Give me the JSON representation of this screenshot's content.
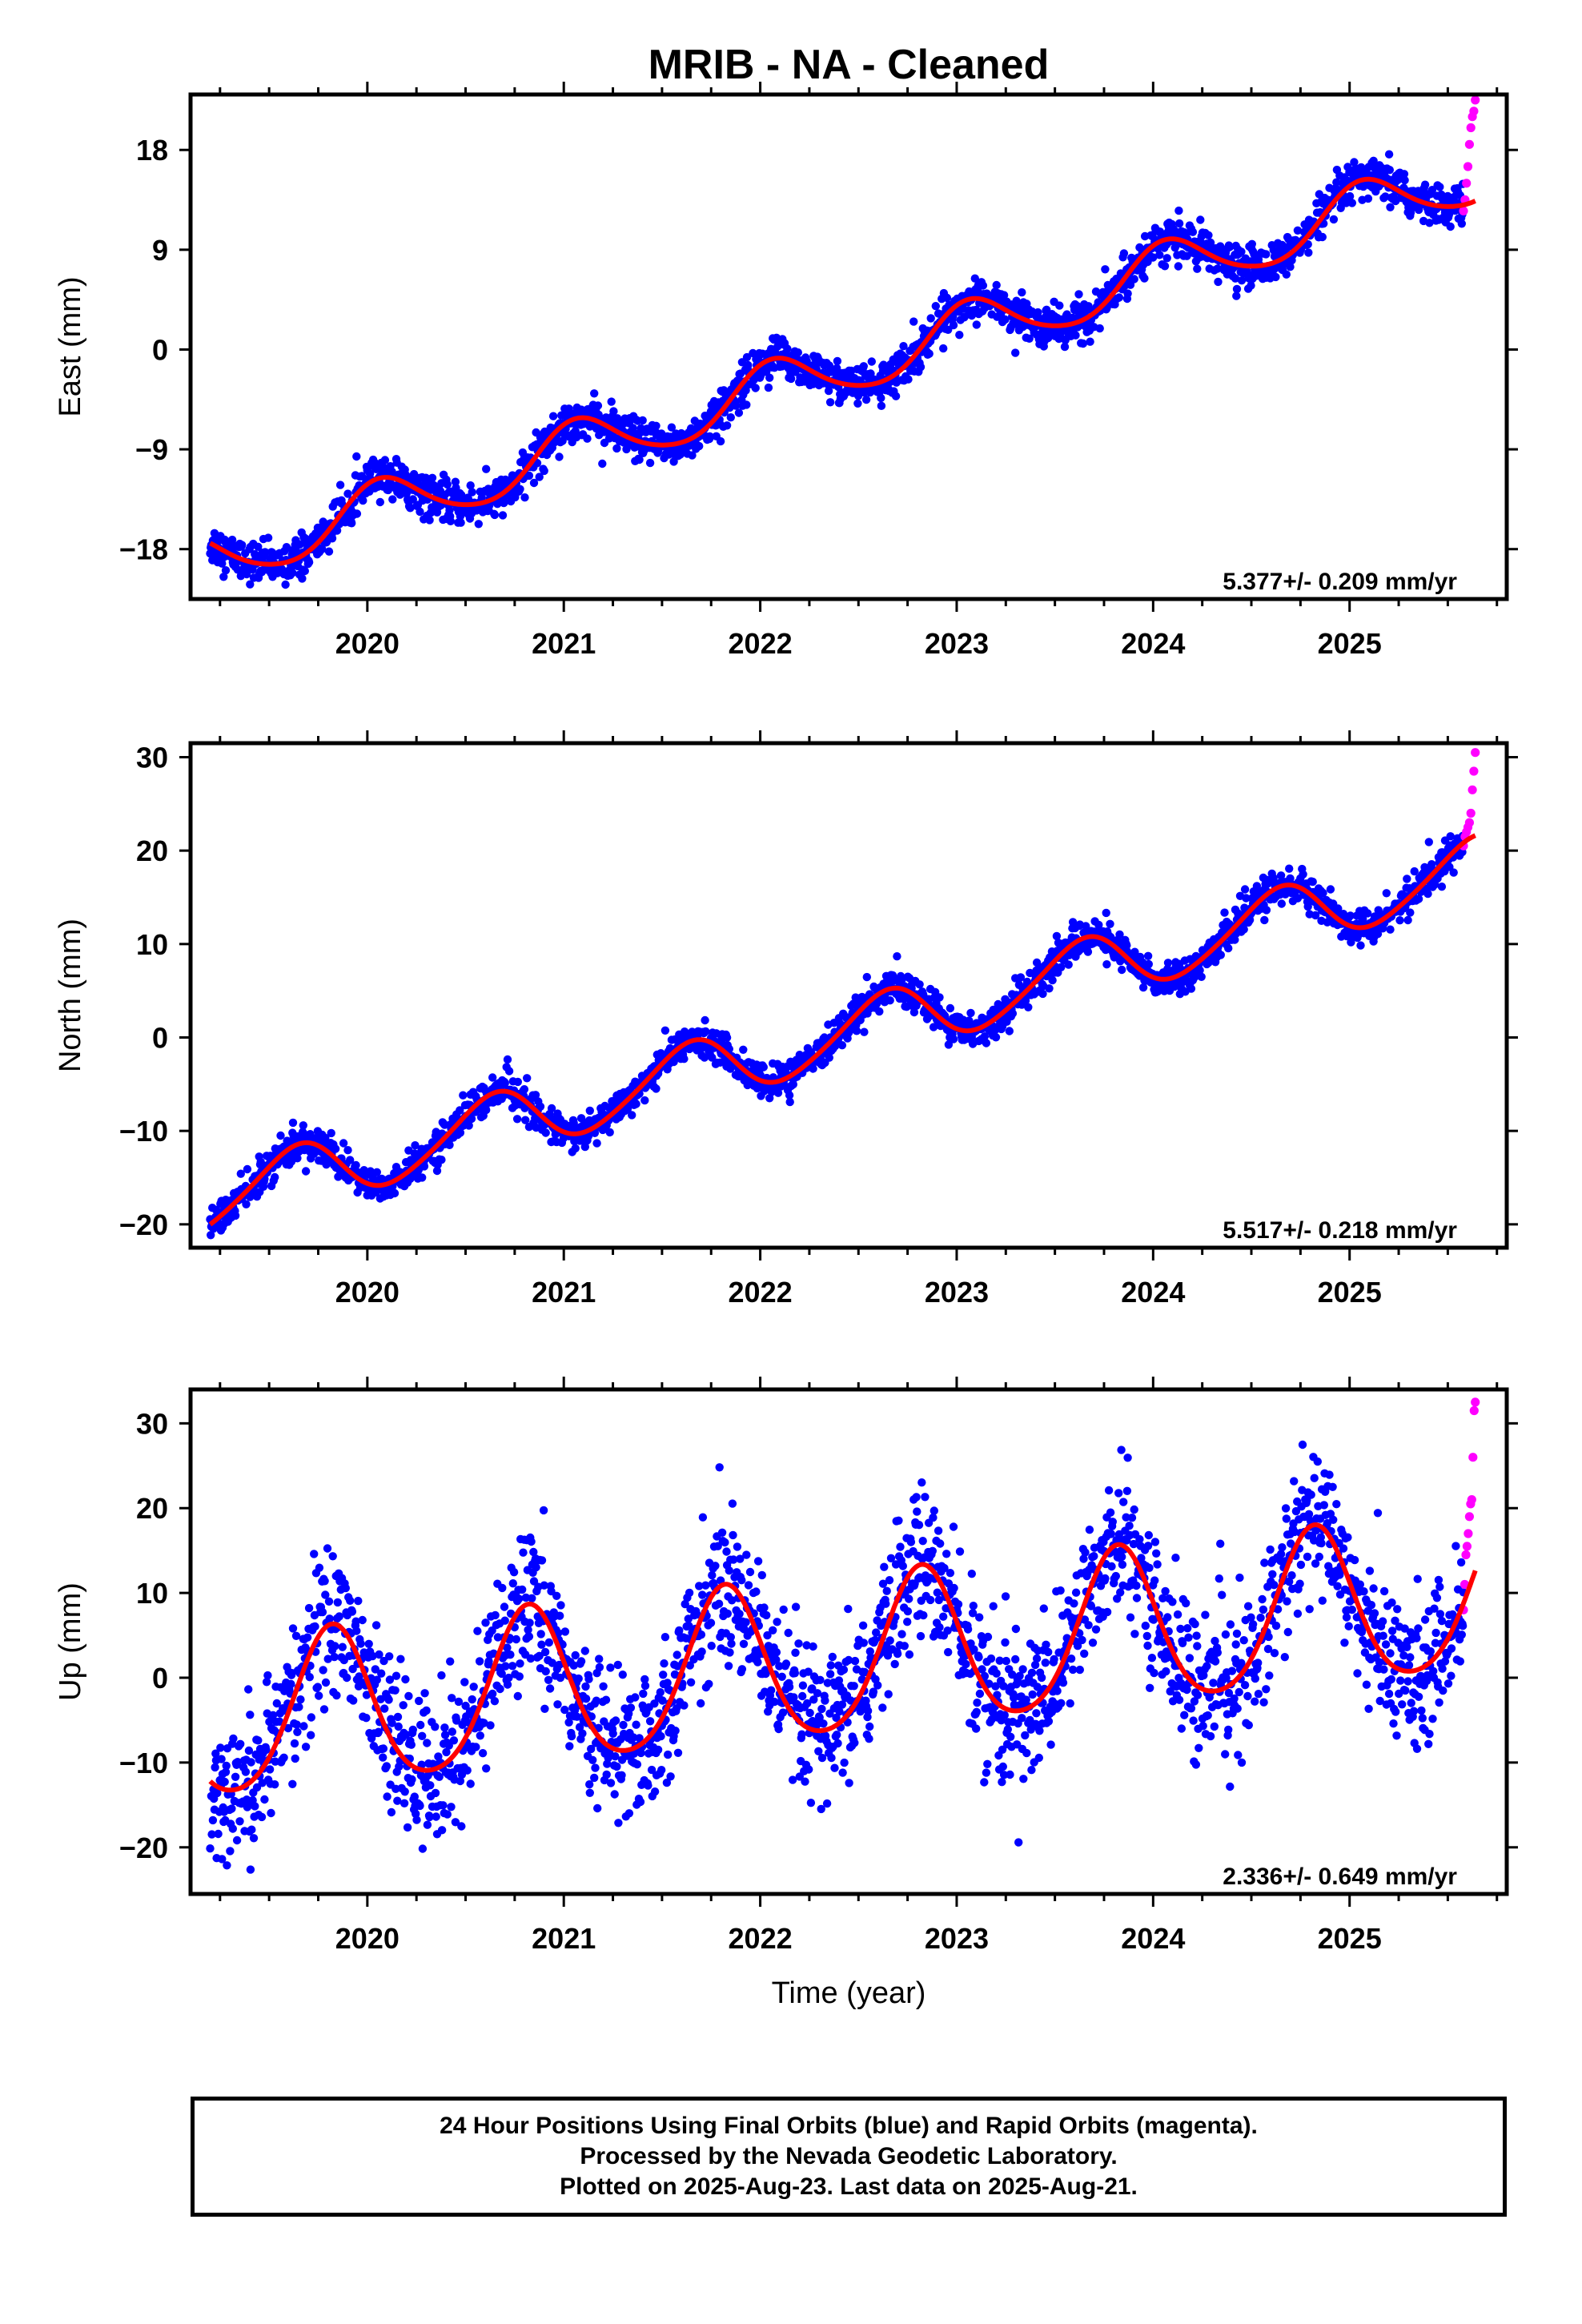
{
  "title": "MRIB  - NA - Cleaned",
  "footer": {
    "line1": "24 Hour Positions Using Final Orbits (blue) and Rapid Orbits (magenta).",
    "line2": "Processed by the Nevada Geodetic Laboratory.",
    "line3": "Plotted on 2025-Aug-23. Last data on 2025-Aug-21."
  },
  "colors": {
    "final": "#0000ff",
    "rapid": "#ff00ff",
    "model": "#ff0000",
    "axis": "#000000"
  },
  "chart_data": [
    {
      "type": "scatter",
      "component": "east",
      "ylabel": "East (mm)",
      "xlabel": "",
      "rate_label": "5.377+/- 0.209 mm/yr",
      "xlim": [
        2019.1,
        2025.8
      ],
      "ylim": [
        -22.5,
        23
      ],
      "y_ticks": [
        -18,
        -9,
        0,
        9,
        18
      ],
      "y_tick_labels": [
        "−18",
        "−9",
        "0",
        "9",
        "18"
      ],
      "x_ticks": [
        2020,
        2021,
        2022,
        2023,
        2024,
        2025
      ],
      "x_tick_labels": [
        "2020",
        "2021",
        "2022",
        "2023",
        "2024",
        "2025"
      ],
      "start": 2019.2,
      "end_final": 2025.58,
      "end_rapid": 2025.64,
      "model": {
        "offset": -19.0,
        "rate": 5.377,
        "annual_amp": 2.5,
        "annual_phase": 0.82,
        "semiannual_amp": 0.3,
        "semiannual_phase": 0.4
      },
      "scatter_sd": 0.9,
      "rapid_values": [
        12.5,
        13.5,
        15.0,
        16.5,
        18.5,
        20.0,
        21.0,
        21.5,
        22.5
      ]
    },
    {
      "type": "scatter",
      "component": "north",
      "ylabel": "North (mm)",
      "xlabel": "",
      "rate_label": "5.517+/- 0.218 mm/yr",
      "xlim": [
        2019.1,
        2025.8
      ],
      "ylim": [
        -22.5,
        31.5
      ],
      "y_ticks": [
        -20,
        -10,
        0,
        10,
        20,
        30
      ],
      "y_tick_labels": [
        "−20",
        "−10",
        "0",
        "10",
        "20",
        "30"
      ],
      "x_ticks": [
        2020,
        2021,
        2022,
        2023,
        2024,
        2025
      ],
      "x_tick_labels": [
        "2020",
        "2021",
        "2022",
        "2023",
        "2024",
        "2025"
      ],
      "start": 2019.2,
      "end_final": 2025.58,
      "end_rapid": 2025.64,
      "model": {
        "offset": -17.4,
        "rate": 5.517,
        "annual_amp": 3.3,
        "annual_phase": 0.38,
        "semiannual_amp": 0.4,
        "semiannual_phase": 0.1
      },
      "scatter_sd": 0.9,
      "rapid_values": [
        20.5,
        21.5,
        22.0,
        22.5,
        23.0,
        24.0,
        26.5,
        28.5,
        30.5
      ]
    },
    {
      "type": "scatter",
      "component": "up",
      "ylabel": "Up (mm)",
      "xlabel": "Time (year)",
      "rate_label": "2.336+/- 0.649 mm/yr",
      "xlim": [
        2019.1,
        2025.8
      ],
      "ylim": [
        -25.5,
        34
      ],
      "y_ticks": [
        -20,
        -10,
        0,
        10,
        20,
        30
      ],
      "y_tick_labels": [
        "−20",
        "−10",
        "0",
        "10",
        "20",
        "30"
      ],
      "x_ticks": [
        2020,
        2021,
        2022,
        2023,
        2024,
        2025
      ],
      "x_tick_labels": [
        "2020",
        "2021",
        "2022",
        "2023",
        "2024",
        "2025"
      ],
      "start": 2019.2,
      "end_final": 2025.58,
      "end_rapid": 2025.64,
      "model": {
        "offset": -5.5,
        "rate": 2.336,
        "annual_amp": 9.2,
        "annual_phase": 0.57,
        "semiannual_amp": 1.2,
        "semiannual_phase": 0.2
      },
      "scatter_sd": 3.6,
      "rapid_values": [
        8.0,
        11.0,
        14.5,
        15.5,
        17.0,
        19.0,
        20.5,
        21.0,
        26.0,
        31.5,
        32.5
      ]
    }
  ]
}
